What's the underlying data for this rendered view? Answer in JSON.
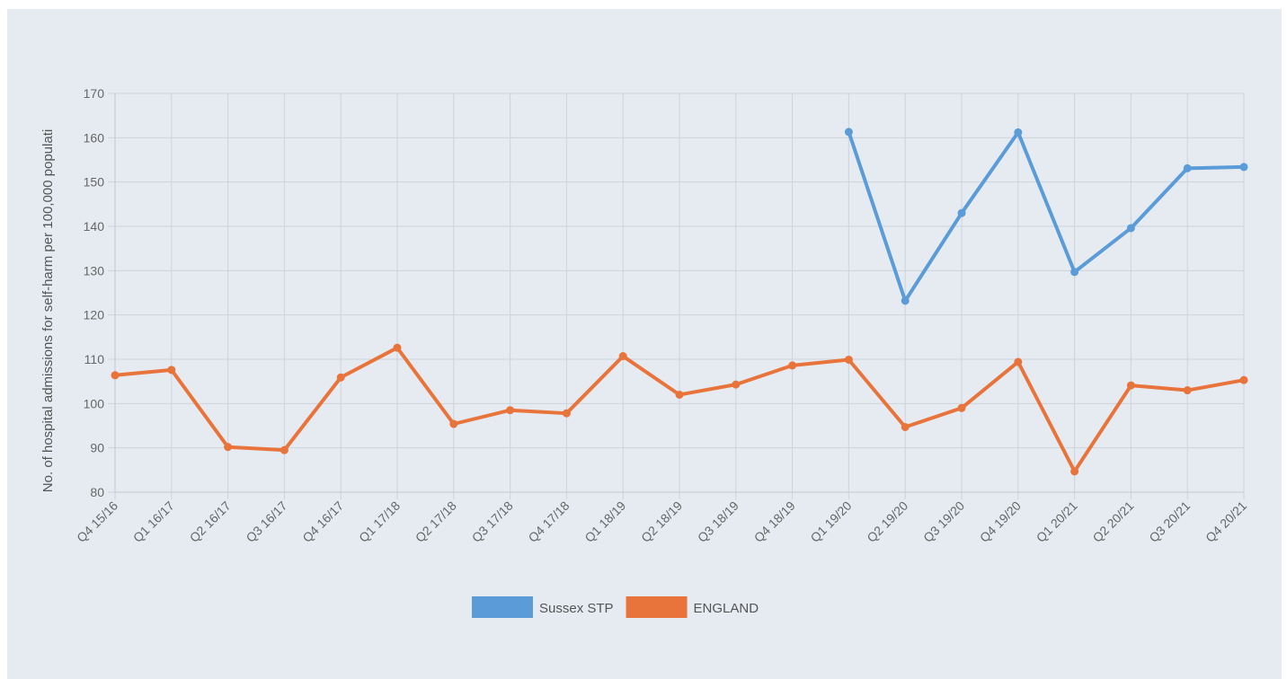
{
  "chart_data": {
    "type": "line",
    "ylabel": "No. of hospital admissions for self-harm per 100,000 populati",
    "xlabel": "",
    "ylim": [
      80,
      170
    ],
    "yticks": [
      80,
      90,
      100,
      110,
      120,
      130,
      140,
      150,
      160,
      170
    ],
    "grid": true,
    "legend": "bottom-center",
    "categories": [
      "Q4 15/16",
      "Q1 16/17",
      "Q2 16/17",
      "Q3 16/17",
      "Q4 16/17",
      "Q1 17/18",
      "Q2 17/18",
      "Q3 17/18",
      "Q4 17/18",
      "Q1 18/19",
      "Q2 18/19",
      "Q3 18/19",
      "Q4 18/19",
      "Q1 19/20",
      "Q2 19/20",
      "Q3 19/20",
      "Q4 19/20",
      "Q1 20/21",
      "Q2 20/21",
      "Q3 20/21",
      "Q4 20/21"
    ],
    "series": [
      {
        "name": "Sussex STP",
        "color": "#5a9bd8",
        "values": [
          null,
          null,
          null,
          null,
          null,
          null,
          null,
          null,
          null,
          null,
          null,
          null,
          null,
          161.3,
          123.2,
          143.0,
          161.2,
          129.7,
          139.6,
          153.1,
          153.4
        ]
      },
      {
        "name": "ENGLAND",
        "color": "#e8743b",
        "values": [
          106.4,
          107.6,
          90.2,
          89.5,
          105.9,
          112.6,
          95.4,
          98.5,
          97.8,
          110.7,
          102.0,
          104.3,
          108.6,
          109.9,
          94.7,
          99.0,
          109.4,
          84.7,
          104.1,
          103.0,
          105.3
        ]
      }
    ]
  }
}
